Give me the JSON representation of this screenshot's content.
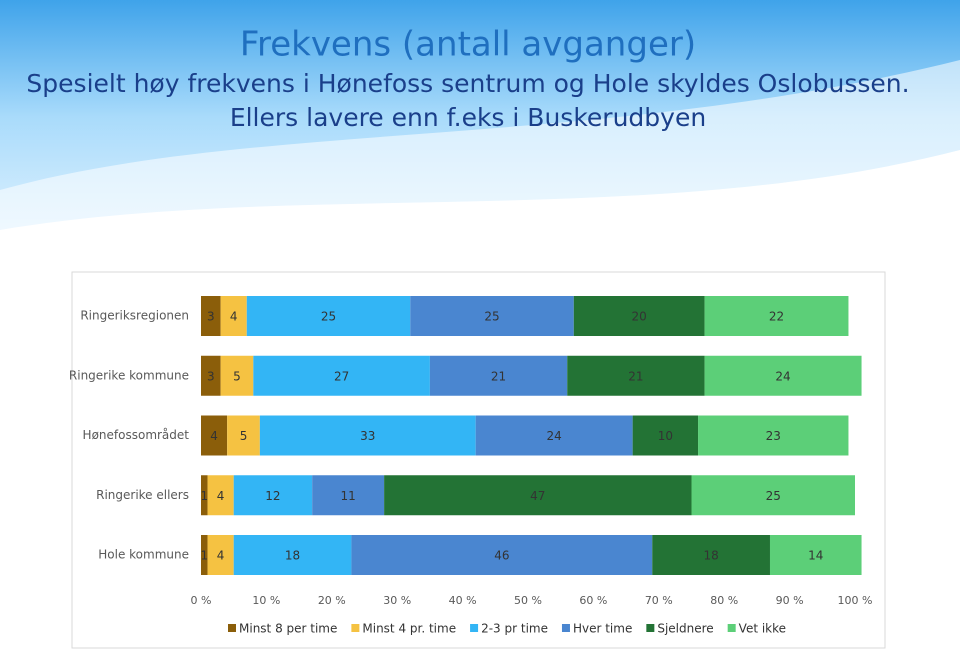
{
  "chart_data": {
    "type": "stacked_bar_horizontal",
    "title": "Frekvens (antall avganger)",
    "subtitle": [
      "Spesielt høy frekvens i Hønefoss sentrum og Hole skyldes Oslobussen.",
      "Ellers lavere enn f.eks i Buskerudbyen"
    ],
    "categories": [
      "Ringeriksregionen",
      "Ringerike kommune",
      "Hønefossområdet",
      "Ringerike ellers",
      "Hole kommune"
    ],
    "series": [
      {
        "name": "Minst 8 per time",
        "color": "#8b5e0a",
        "values": [
          3,
          3,
          4,
          1,
          1
        ]
      },
      {
        "name": "Minst 4 pr. time",
        "color": "#f5c242",
        "values": [
          4,
          5,
          5,
          4,
          4
        ]
      },
      {
        "name": "2-3 pr time",
        "color": "#33b5f5",
        "values": [
          25,
          27,
          33,
          12,
          18
        ]
      },
      {
        "name": "Hver time",
        "color": "#4a86d0",
        "values": [
          25,
          21,
          24,
          11,
          46
        ]
      },
      {
        "name": "Sjeldnere",
        "color": "#237335",
        "values": [
          20,
          21,
          10,
          47,
          18
        ]
      },
      {
        "name": "Vet ikke",
        "color": "#5ccf78",
        "values": [
          22,
          24,
          23,
          25,
          14
        ]
      }
    ],
    "xlim": [
      0,
      100
    ],
    "xticks": [
      {
        "value": 0,
        "label": "0 %"
      },
      {
        "value": 10,
        "label": "10 %"
      },
      {
        "value": 20,
        "label": "20 %"
      },
      {
        "value": 30,
        "label": "30 %"
      },
      {
        "value": 40,
        "label": "40 %"
      },
      {
        "value": 50,
        "label": "50 %"
      },
      {
        "value": 60,
        "label": "60 %"
      },
      {
        "value": 70,
        "label": "70 %"
      },
      {
        "value": 80,
        "label": "80 %"
      },
      {
        "value": 90,
        "label": "90 %"
      },
      {
        "value": 100,
        "label": "100 %"
      }
    ],
    "legend": "bottom"
  }
}
